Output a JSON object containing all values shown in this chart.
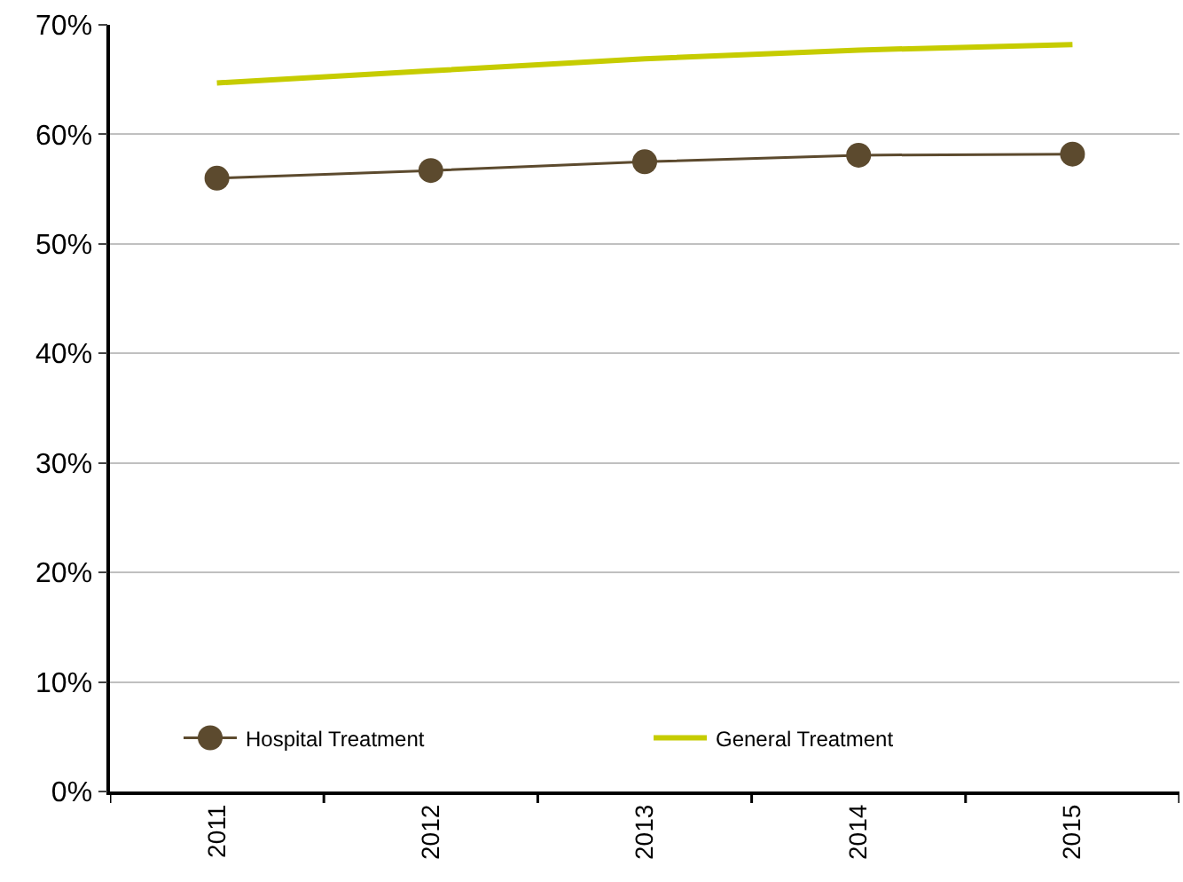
{
  "chart_data": {
    "type": "line",
    "categories": [
      "2011",
      "2012",
      "2013",
      "2014",
      "2015"
    ],
    "series": [
      {
        "name": "Hospital Treatment",
        "color": "#5c4a2e",
        "marker": "circle",
        "values": [
          56.0,
          56.7,
          57.5,
          58.1,
          58.2
        ]
      },
      {
        "name": "General Treatment",
        "color": "#c6cc00",
        "marker": "none",
        "values": [
          64.7,
          65.8,
          66.9,
          67.7,
          68.2
        ]
      }
    ],
    "ylim": [
      0,
      70
    ],
    "yticks": [
      {
        "value": 0,
        "label": "0%"
      },
      {
        "value": 10,
        "label": "10%"
      },
      {
        "value": 20,
        "label": "20%"
      },
      {
        "value": 30,
        "label": "30%"
      },
      {
        "value": 40,
        "label": "40%"
      },
      {
        "value": 50,
        "label": "50%"
      },
      {
        "value": 60,
        "label": "60%"
      },
      {
        "value": 70,
        "label": "70%"
      }
    ],
    "grid": "y",
    "legend": "bottom"
  }
}
